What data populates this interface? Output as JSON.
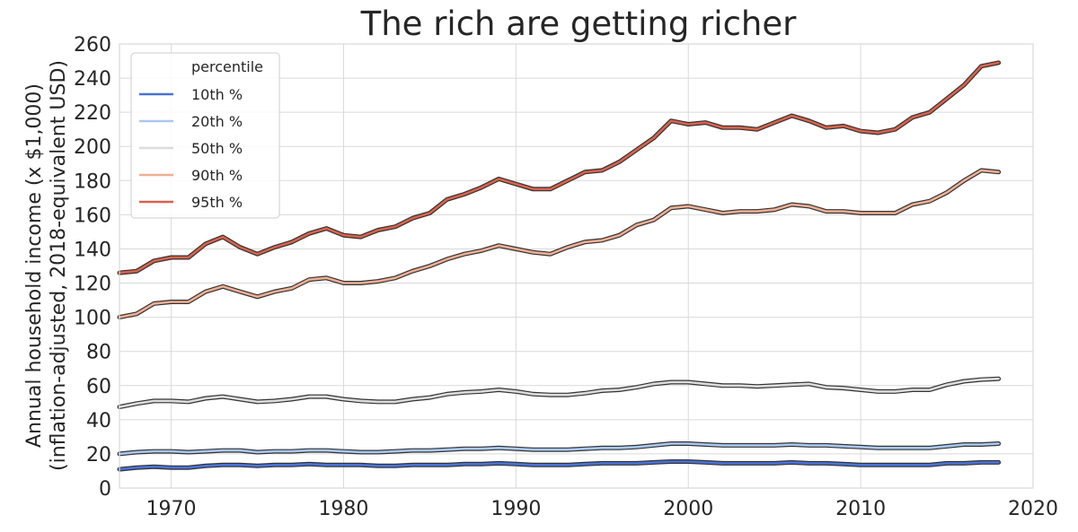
{
  "chart_data": {
    "type": "line",
    "title": "The rich are getting richer",
    "xlabel": "",
    "ylabel_lines": [
      "Annual household income (x $1,000)",
      "(inflation-adjusted, 2018-equivalent USD)"
    ],
    "xlim": [
      1967,
      2020
    ],
    "ylim": [
      0,
      260
    ],
    "xticks": [
      1970,
      1980,
      1990,
      2000,
      2010,
      2020
    ],
    "yticks": [
      0,
      20,
      40,
      60,
      80,
      100,
      120,
      140,
      160,
      180,
      200,
      220,
      240,
      260
    ],
    "grid": true,
    "legend": {
      "title": "percentile",
      "placement": "top-left"
    },
    "x": [
      1967,
      1968,
      1969,
      1970,
      1971,
      1972,
      1973,
      1974,
      1975,
      1976,
      1977,
      1978,
      1979,
      1980,
      1981,
      1982,
      1983,
      1984,
      1985,
      1986,
      1987,
      1988,
      1989,
      1990,
      1991,
      1992,
      1993,
      1994,
      1995,
      1996,
      1997,
      1998,
      1999,
      2000,
      2001,
      2002,
      2003,
      2004,
      2005,
      2006,
      2007,
      2008,
      2009,
      2010,
      2011,
      2012,
      2013,
      2014,
      2015,
      2016,
      2017,
      2018
    ],
    "series": [
      {
        "name": "10th %",
        "color": "#4a72d6",
        "values": [
          11,
          12,
          12.5,
          12,
          12,
          13,
          13.5,
          13.5,
          13,
          13.5,
          13.5,
          14,
          13.5,
          13.5,
          13.5,
          13,
          13,
          13.5,
          13.5,
          13.5,
          14,
          14,
          14.5,
          14,
          13.5,
          13.5,
          13.5,
          14,
          14.5,
          14.5,
          14.5,
          15,
          15.5,
          15.5,
          15,
          14.5,
          14.5,
          14.5,
          14.5,
          15,
          14.5,
          14.5,
          14,
          13.5,
          13.5,
          13.5,
          13.5,
          13.5,
          14.5,
          14.5,
          15,
          15
        ]
      },
      {
        "name": "20th %",
        "color": "#a9c8f2",
        "values": [
          20,
          21,
          21.5,
          21.5,
          21,
          21.5,
          22,
          22,
          21,
          21.5,
          21.5,
          22,
          22,
          21.5,
          21,
          21,
          21.5,
          22,
          22,
          22.5,
          23,
          23,
          23.5,
          23,
          22.5,
          22.5,
          22.5,
          23,
          23.5,
          23.5,
          24,
          25,
          26,
          26,
          25.5,
          25,
          25,
          25,
          25,
          25.5,
          25,
          25,
          24.5,
          24,
          23.5,
          23.5,
          23.5,
          23.5,
          24.5,
          25.5,
          25.5,
          26
        ]
      },
      {
        "name": "50th %",
        "color": "#dcdcdc",
        "values": [
          47.5,
          49.5,
          51,
          51,
          50.5,
          52.5,
          53.5,
          52,
          50.5,
          51,
          52,
          53.5,
          53.5,
          52,
          51,
          50.5,
          50.5,
          52,
          53,
          55,
          56,
          56.5,
          57.5,
          56.5,
          55,
          54.5,
          54.5,
          55.5,
          57,
          57.5,
          59,
          61,
          62,
          62,
          61,
          60,
          60,
          59.5,
          60,
          60.5,
          61,
          59,
          58.5,
          57.5,
          56.5,
          56.5,
          57.5,
          57.5,
          60.5,
          62.5,
          63.5,
          64
        ]
      },
      {
        "name": "90th %",
        "color": "#efae93",
        "values": [
          100,
          102,
          108,
          109,
          109,
          115,
          118,
          115,
          112,
          115,
          117,
          122,
          123,
          120,
          120,
          121,
          123,
          127,
          130,
          134,
          137,
          139,
          142,
          140,
          138,
          137,
          141,
          144,
          145,
          148,
          154,
          157,
          164,
          165,
          163,
          161,
          162,
          162,
          163,
          166,
          165,
          162,
          162,
          161,
          161,
          161,
          166,
          168,
          173,
          180,
          186,
          185
        ]
      },
      {
        "name": "95th %",
        "color": "#d9624c",
        "values": [
          126,
          127,
          133,
          135,
          135,
          143,
          147,
          141,
          137,
          141,
          144,
          149,
          152,
          148,
          147,
          151,
          153,
          158,
          161,
          169,
          172,
          176,
          181,
          178,
          175,
          175,
          180,
          185,
          186,
          191,
          198,
          205,
          215,
          213,
          214,
          211,
          211,
          210,
          214,
          218,
          215,
          211,
          212,
          209,
          208,
          210,
          217,
          220,
          228,
          236,
          247,
          249
        ]
      }
    ]
  }
}
